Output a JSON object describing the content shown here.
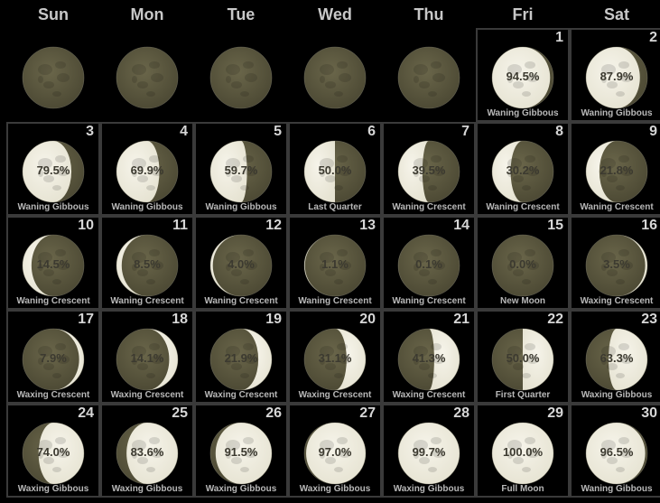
{
  "weekdays": [
    "Sun",
    "Mon",
    "Tue",
    "Wed",
    "Thu",
    "Fri",
    "Sat"
  ],
  "first_weekday_index": 5,
  "colors": {
    "background": "#000000",
    "cell_border": "#3a3a3a",
    "moon_light": "#e6e3d2",
    "moon_dark": "#4b4833",
    "date_text": "#d6d6d6",
    "phase_text": "#b8b8b8"
  },
  "leading_icon": "new-moon-icon",
  "days": [
    {
      "date": "1",
      "illumination": "94.5%",
      "phase": "Waning Gibbous",
      "fraction": 0.945,
      "waxing": false
    },
    {
      "date": "2",
      "illumination": "87.9%",
      "phase": "Waning Gibbous",
      "fraction": 0.879,
      "waxing": false
    },
    {
      "date": "3",
      "illumination": "79.5%",
      "phase": "Waning Gibbous",
      "fraction": 0.795,
      "waxing": false
    },
    {
      "date": "4",
      "illumination": "69.9%",
      "phase": "Waning Gibbous",
      "fraction": 0.699,
      "waxing": false
    },
    {
      "date": "5",
      "illumination": "59.7%",
      "phase": "Waning Gibbous",
      "fraction": 0.597,
      "waxing": false
    },
    {
      "date": "6",
      "illumination": "50.0%",
      "phase": "Last Quarter",
      "fraction": 0.5,
      "waxing": false
    },
    {
      "date": "7",
      "illumination": "39.5%",
      "phase": "Waning Crescent",
      "fraction": 0.395,
      "waxing": false
    },
    {
      "date": "8",
      "illumination": "30.2%",
      "phase": "Waning Crescent",
      "fraction": 0.302,
      "waxing": false
    },
    {
      "date": "9",
      "illumination": "21.8%",
      "phase": "Waning Crescent",
      "fraction": 0.218,
      "waxing": false
    },
    {
      "date": "10",
      "illumination": "14.5%",
      "phase": "Waning Crescent",
      "fraction": 0.145,
      "waxing": false
    },
    {
      "date": "11",
      "illumination": "8.5%",
      "phase": "Waning Crescent",
      "fraction": 0.085,
      "waxing": false
    },
    {
      "date": "12",
      "illumination": "4.0%",
      "phase": "Waning Crescent",
      "fraction": 0.04,
      "waxing": false
    },
    {
      "date": "13",
      "illumination": "1.1%",
      "phase": "Waning Crescent",
      "fraction": 0.011,
      "waxing": false
    },
    {
      "date": "14",
      "illumination": "0.1%",
      "phase": "Waning Crescent",
      "fraction": 0.001,
      "waxing": false
    },
    {
      "date": "15",
      "illumination": "0.0%",
      "phase": "New Moon",
      "fraction": 0.0,
      "waxing": true
    },
    {
      "date": "16",
      "illumination": "3.5%",
      "phase": "Waxing Crescent",
      "fraction": 0.035,
      "waxing": true
    },
    {
      "date": "17",
      "illumination": "7.9%",
      "phase": "Waxing Crescent",
      "fraction": 0.079,
      "waxing": true
    },
    {
      "date": "18",
      "illumination": "14.1%",
      "phase": "Waxing Crescent",
      "fraction": 0.141,
      "waxing": true
    },
    {
      "date": "19",
      "illumination": "21.9%",
      "phase": "Waxing Crescent",
      "fraction": 0.219,
      "waxing": true
    },
    {
      "date": "20",
      "illumination": "31.1%",
      "phase": "Waxing Crescent",
      "fraction": 0.311,
      "waxing": true
    },
    {
      "date": "21",
      "illumination": "41.3%",
      "phase": "Waxing Crescent",
      "fraction": 0.413,
      "waxing": true
    },
    {
      "date": "22",
      "illumination": "50.0%",
      "phase": "First Quarter",
      "fraction": 0.5,
      "waxing": true
    },
    {
      "date": "23",
      "illumination": "63.3%",
      "phase": "Waxing Gibbous",
      "fraction": 0.633,
      "waxing": true
    },
    {
      "date": "24",
      "illumination": "74.0%",
      "phase": "Waxing Gibbous",
      "fraction": 0.74,
      "waxing": true
    },
    {
      "date": "25",
      "illumination": "83.6%",
      "phase": "Waxing Gibbous",
      "fraction": 0.836,
      "waxing": true
    },
    {
      "date": "26",
      "illumination": "91.5%",
      "phase": "Waxing Gibbous",
      "fraction": 0.915,
      "waxing": true
    },
    {
      "date": "27",
      "illumination": "97.0%",
      "phase": "Waxing Gibbous",
      "fraction": 0.97,
      "waxing": true
    },
    {
      "date": "28",
      "illumination": "99.7%",
      "phase": "Waxing Gibbous",
      "fraction": 0.997,
      "waxing": true
    },
    {
      "date": "29",
      "illumination": "100.0%",
      "phase": "Full Moon",
      "fraction": 1.0,
      "waxing": true
    },
    {
      "date": "30",
      "illumination": "96.5%",
      "phase": "Waning Gibbous",
      "fraction": 0.965,
      "waxing": false
    }
  ]
}
